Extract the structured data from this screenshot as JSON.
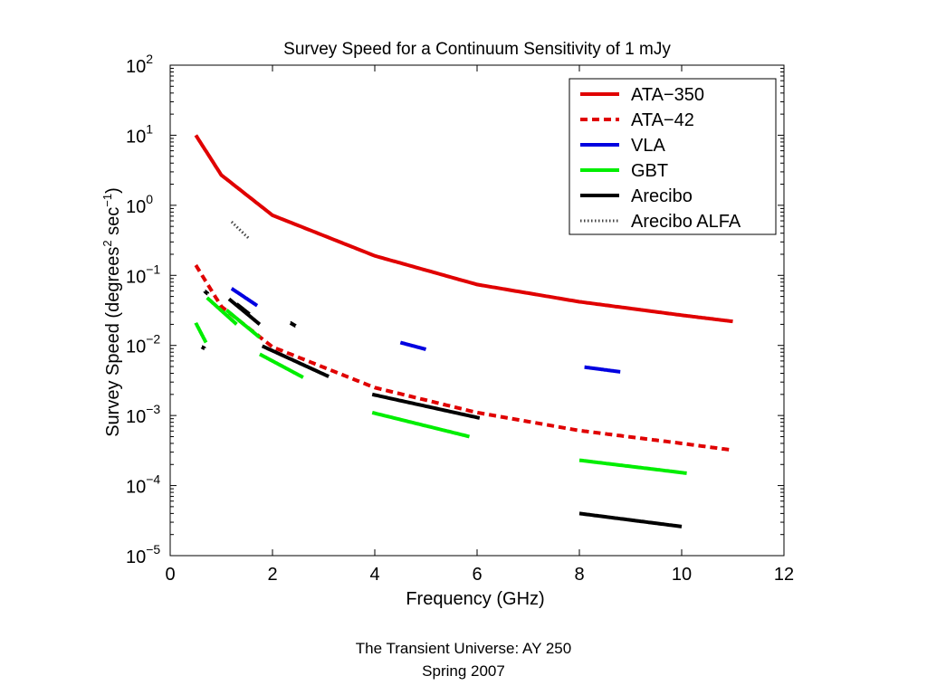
{
  "footer": {
    "line1": "The Transient Universe:  AY 250",
    "line2": "Spring 2007"
  },
  "chart_data": {
    "type": "line",
    "title": "Survey Speed for a Continuum Sensitivity of 1 mJy",
    "xlabel": "Frequency (GHz)",
    "ylabel": "Survey Speed (degrees² sec⁻¹)",
    "ylabel_parts": {
      "pre": "Survey Speed (degrees",
      "sup1": "2",
      "mid": " sec",
      "sup2": "−1",
      "post": ")"
    },
    "xlim": [
      0,
      12
    ],
    "ylim": [
      1e-05,
      100
    ],
    "yscale": "log",
    "xticks": [
      0,
      2,
      4,
      6,
      8,
      10,
      12
    ],
    "yticks": [
      {
        "value": 1e-05,
        "base": "10",
        "exp": "−5"
      },
      {
        "value": 0.0001,
        "base": "10",
        "exp": "−4"
      },
      {
        "value": 0.001,
        "base": "10",
        "exp": "−3"
      },
      {
        "value": 0.01,
        "base": "10",
        "exp": "−2"
      },
      {
        "value": 0.1,
        "base": "10",
        "exp": "−1"
      },
      {
        "value": 1,
        "base": "10",
        "exp": "0"
      },
      {
        "value": 10,
        "base": "10",
        "exp": "1"
      },
      {
        "value": 100,
        "base": "10",
        "exp": "2"
      }
    ],
    "grid": false,
    "legend_position": "top-right",
    "colors": {
      "ata": "#e00000",
      "vla": "#0000e0",
      "gbt": "#00ee00",
      "arecibo": "#000000",
      "alfa": "#444444"
    },
    "series": [
      {
        "name": "ATA−350",
        "color": "#e00000",
        "style": "solid",
        "segments": [
          [
            [
              0.5,
              10
            ],
            [
              1,
              2.7
            ],
            [
              2,
              0.72
            ],
            [
              4,
              0.19
            ],
            [
              6,
              0.074
            ],
            [
              8,
              0.042
            ],
            [
              10,
              0.027
            ],
            [
              11,
              0.022
            ]
          ]
        ]
      },
      {
        "name": "ATA−42",
        "color": "#e00000",
        "style": "dashed",
        "segments": [
          [
            [
              0.5,
              0.14
            ],
            [
              1,
              0.036
            ],
            [
              2,
              0.0095
            ],
            [
              4,
              0.0025
            ],
            [
              6,
              0.0011
            ],
            [
              8,
              0.00061
            ],
            [
              10,
              0.0004
            ],
            [
              11,
              0.00032
            ]
          ]
        ]
      },
      {
        "name": "VLA",
        "color": "#0000e0",
        "style": "solid",
        "segments": [
          [
            [
              1.2,
              0.065
            ],
            [
              1.7,
              0.037
            ]
          ],
          [
            [
              4.5,
              0.011
            ],
            [
              5.0,
              0.0088
            ]
          ],
          [
            [
              8.1,
              0.0049
            ],
            [
              8.8,
              0.0042
            ]
          ]
        ]
      },
      {
        "name": "GBT",
        "color": "#00ee00",
        "style": "solid",
        "segments": [
          [
            [
              0.5,
              0.021
            ],
            [
              0.7,
              0.011
            ]
          ],
          [
            [
              0.72,
              0.048
            ],
            [
              1.3,
              0.02
            ]
          ],
          [
            [
              1.1,
              0.032
            ],
            [
              1.75,
              0.013
            ]
          ],
          [
            [
              1.75,
              0.0075
            ],
            [
              2.6,
              0.0035
            ]
          ],
          [
            [
              3.95,
              0.0011
            ],
            [
              5.85,
              0.0005
            ]
          ],
          [
            [
              8.0,
              0.00023
            ],
            [
              10.1,
              0.00015
            ]
          ]
        ]
      },
      {
        "name": "Arecibo",
        "color": "#000000",
        "style": "solid",
        "segments": [
          [
            [
              0.62,
              0.0095
            ],
            [
              0.67,
              0.0091
            ]
          ],
          [
            [
              0.68,
              0.059
            ],
            [
              0.73,
              0.055
            ]
          ],
          [
            [
              1.15,
              0.046
            ],
            [
              1.75,
              0.02
            ]
          ],
          [
            [
              1.3,
              0.039
            ],
            [
              1.55,
              0.028
            ]
          ],
          [
            [
              2.35,
              0.021
            ],
            [
              2.45,
              0.019
            ]
          ],
          [
            [
              1.8,
              0.0098
            ],
            [
              3.1,
              0.0036
            ]
          ],
          [
            [
              3.95,
              0.002
            ],
            [
              6.05,
              0.00092
            ]
          ],
          [
            [
              8.0,
              4e-05
            ],
            [
              10.0,
              2.6e-05
            ]
          ]
        ]
      },
      {
        "name": "Arecibo ALFA",
        "color": "#444444",
        "style": "dotted",
        "segments": [
          [
            [
              1.2,
              0.58
            ],
            [
              1.55,
              0.33
            ]
          ]
        ]
      }
    ]
  }
}
